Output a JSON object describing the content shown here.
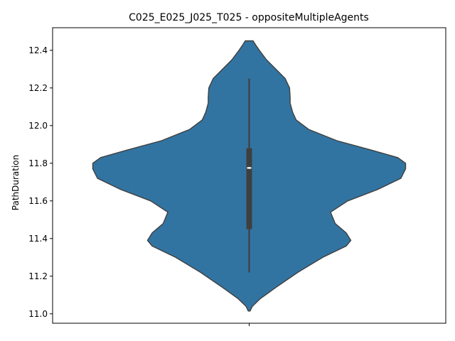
{
  "chart_data": {
    "type": "violin",
    "title": "C025_E025_J025_T025 - oppositeMultipleAgents",
    "xlabel": "",
    "ylabel": "PathDuration",
    "ylim": [
      10.95,
      12.52
    ],
    "yticks": [
      11.0,
      11.2,
      11.4,
      11.6,
      11.8,
      12.0,
      12.2,
      12.4
    ],
    "ytick_labels": [
      "11.0",
      "11.2",
      "11.4",
      "11.6",
      "11.8",
      "12.0",
      "12.2",
      "12.4"
    ],
    "categories": [
      ""
    ],
    "grid": false,
    "legend": "none",
    "color": "#3274a1",
    "edge_color": "#3f3f3f",
    "box": {
      "whisker_low": 11.22,
      "q1": 11.45,
      "median": 11.775,
      "q3": 11.88,
      "whisker_high": 12.25
    },
    "density_profile": {
      "y": [
        11.015,
        11.04,
        11.08,
        11.14,
        11.22,
        11.3,
        11.36,
        11.39,
        11.43,
        11.48,
        11.54,
        11.6,
        11.66,
        11.72,
        11.77,
        11.8,
        11.83,
        11.87,
        11.92,
        11.98,
        12.03,
        12.07,
        12.1,
        12.12,
        12.15,
        12.2,
        12.25,
        12.3,
        12.35,
        12.4,
        12.43,
        12.45
      ],
      "half_width": [
        0.006,
        0.02,
        0.07,
        0.17,
        0.31,
        0.47,
        0.62,
        0.65,
        0.62,
        0.55,
        0.52,
        0.63,
        0.82,
        0.97,
        1.0,
        1.0,
        0.95,
        0.78,
        0.56,
        0.38,
        0.3,
        0.278,
        0.268,
        0.262,
        0.262,
        0.258,
        0.23,
        0.17,
        0.11,
        0.065,
        0.04,
        0.025
      ]
    }
  }
}
